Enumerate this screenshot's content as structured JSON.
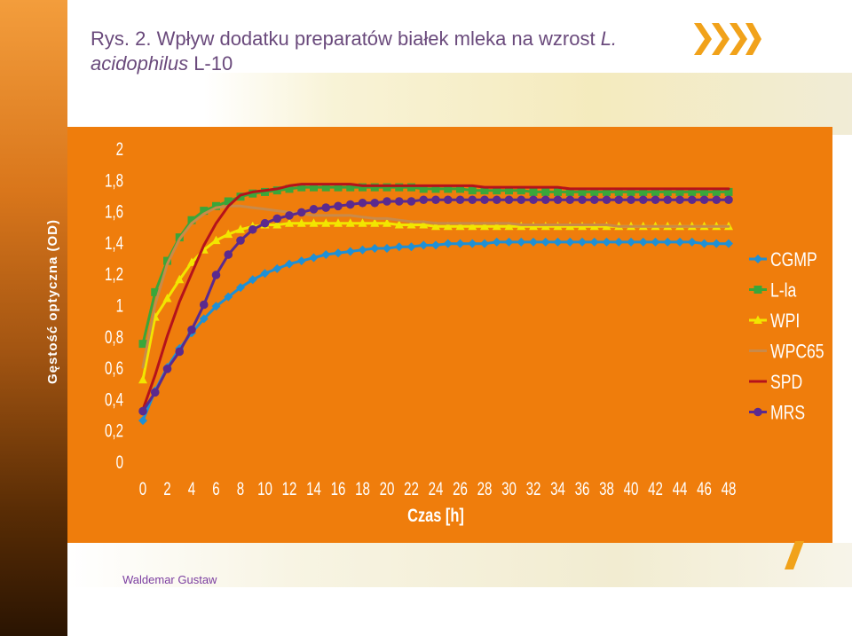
{
  "title": {
    "prefix": "Rys. 2. Wpływ dodatku preparatów białek mleka na wzrost ",
    "species": "L. acidophilus",
    "strain": " L-10"
  },
  "author": "Waldemar Gustaw",
  "colors": {
    "panel": "#ef7d0c",
    "title": "#6a4a7c",
    "author": "#7b3ea0"
  },
  "chart_data": {
    "type": "line",
    "title": "",
    "xlabel": "Czas [h]",
    "ylabel": "Gęstość optyczna (OD)",
    "xlim": [
      0,
      48
    ],
    "ylim": [
      0,
      2
    ],
    "xticks": [
      "0",
      "2",
      "4",
      "6",
      "8",
      "10",
      "12",
      "14",
      "16",
      "18",
      "20",
      "22",
      "24",
      "26",
      "28",
      "30",
      "32",
      "34",
      "36",
      "38",
      "40",
      "42",
      "44",
      "46",
      "48"
    ],
    "yticks": [
      "0",
      "0,2",
      "0,4",
      "0,6",
      "0,8",
      "1",
      "1,2",
      "1,4",
      "1,6",
      "1,8",
      "2"
    ],
    "legend_position": "right",
    "series": [
      {
        "name": "CGMP",
        "color": "#1e90d6",
        "marker": "diamond",
        "x": [
          0,
          1,
          2,
          3,
          4,
          5,
          6,
          7,
          8,
          9,
          10,
          11,
          12,
          13,
          14,
          15,
          16,
          17,
          18,
          19,
          20,
          21,
          22,
          23,
          24,
          25,
          26,
          27,
          28,
          29,
          30,
          31,
          32,
          33,
          34,
          35,
          36,
          37,
          38,
          39,
          40,
          41,
          42,
          43,
          44,
          45,
          46,
          47,
          48
        ],
        "y": [
          0.26,
          0.45,
          0.6,
          0.72,
          0.82,
          0.91,
          0.99,
          1.05,
          1.11,
          1.16,
          1.2,
          1.23,
          1.26,
          1.28,
          1.3,
          1.32,
          1.33,
          1.34,
          1.35,
          1.36,
          1.36,
          1.37,
          1.37,
          1.38,
          1.38,
          1.39,
          1.39,
          1.39,
          1.39,
          1.4,
          1.4,
          1.4,
          1.4,
          1.4,
          1.4,
          1.4,
          1.4,
          1.4,
          1.4,
          1.4,
          1.4,
          1.4,
          1.4,
          1.4,
          1.4,
          1.4,
          1.39,
          1.39,
          1.39
        ]
      },
      {
        "name": "L-la",
        "color": "#3aa63a",
        "marker": "square",
        "x": [
          0,
          1,
          2,
          3,
          4,
          5,
          6,
          7,
          8,
          9,
          10,
          11,
          12,
          13,
          14,
          15,
          16,
          17,
          18,
          19,
          20,
          21,
          22,
          23,
          24,
          25,
          26,
          27,
          28,
          29,
          30,
          31,
          32,
          33,
          34,
          35,
          36,
          37,
          38,
          39,
          40,
          41,
          42,
          43,
          44,
          45,
          46,
          47,
          48
        ],
        "y": [
          0.75,
          1.08,
          1.28,
          1.43,
          1.54,
          1.6,
          1.63,
          1.66,
          1.69,
          1.71,
          1.72,
          1.73,
          1.74,
          1.75,
          1.75,
          1.75,
          1.75,
          1.75,
          1.75,
          1.75,
          1.75,
          1.75,
          1.75,
          1.74,
          1.74,
          1.74,
          1.74,
          1.73,
          1.73,
          1.73,
          1.73,
          1.73,
          1.72,
          1.72,
          1.72,
          1.72,
          1.72,
          1.72,
          1.72,
          1.72,
          1.72,
          1.72,
          1.72,
          1.72,
          1.72,
          1.72,
          1.72,
          1.72,
          1.72
        ]
      },
      {
        "name": "WPI",
        "color": "#f2e600",
        "marker": "triangle",
        "x": [
          0,
          1,
          2,
          3,
          4,
          5,
          6,
          7,
          8,
          9,
          10,
          11,
          12,
          13,
          14,
          15,
          16,
          17,
          18,
          19,
          20,
          21,
          22,
          23,
          24,
          25,
          26,
          27,
          28,
          29,
          30,
          31,
          32,
          33,
          34,
          35,
          36,
          37,
          38,
          39,
          40,
          41,
          42,
          43,
          44,
          45,
          46,
          47,
          48
        ],
        "y": [
          0.52,
          0.92,
          1.04,
          1.16,
          1.27,
          1.35,
          1.41,
          1.45,
          1.48,
          1.5,
          1.51,
          1.51,
          1.52,
          1.52,
          1.52,
          1.52,
          1.52,
          1.52,
          1.52,
          1.52,
          1.52,
          1.51,
          1.51,
          1.51,
          1.5,
          1.5,
          1.5,
          1.5,
          1.5,
          1.5,
          1.5,
          1.5,
          1.5,
          1.5,
          1.5,
          1.5,
          1.5,
          1.5,
          1.5,
          1.5,
          1.5,
          1.5,
          1.5,
          1.5,
          1.5,
          1.5,
          1.5,
          1.5,
          1.5
        ]
      },
      {
        "name": "WPC65",
        "color": "#c98a4a",
        "marker": "dash",
        "x": [
          0,
          1,
          2,
          3,
          4,
          5,
          6,
          7,
          8,
          9,
          10,
          11,
          12,
          13,
          14,
          15,
          16,
          17,
          18,
          19,
          20,
          21,
          22,
          23,
          24,
          25,
          26,
          27,
          28,
          29,
          30,
          31,
          32,
          33,
          34,
          35,
          36,
          37,
          38,
          39,
          40,
          41,
          42,
          43,
          44,
          45,
          46,
          47,
          48
        ],
        "y": [
          0.6,
          1.0,
          1.26,
          1.42,
          1.52,
          1.58,
          1.62,
          1.63,
          1.63,
          1.62,
          1.61,
          1.6,
          1.59,
          1.58,
          1.57,
          1.57,
          1.57,
          1.57,
          1.56,
          1.55,
          1.55,
          1.54,
          1.53,
          1.53,
          1.52,
          1.52,
          1.52,
          1.52,
          1.52,
          1.52,
          1.52,
          1.51,
          1.51,
          1.51,
          1.51,
          1.51,
          1.51,
          1.51,
          1.51,
          1.5,
          1.5,
          1.5,
          1.5,
          1.5,
          1.5,
          1.5,
          1.5,
          1.5,
          1.5
        ]
      },
      {
        "name": "SPD",
        "color": "#b5121b",
        "marker": "dash",
        "x": [
          0,
          1,
          2,
          3,
          4,
          5,
          6,
          7,
          8,
          9,
          10,
          11,
          12,
          13,
          14,
          15,
          16,
          17,
          18,
          19,
          20,
          21,
          22,
          23,
          24,
          25,
          26,
          27,
          28,
          29,
          30,
          31,
          32,
          33,
          34,
          35,
          36,
          37,
          38,
          39,
          40,
          41,
          42,
          43,
          44,
          45,
          46,
          47,
          48
        ],
        "y": [
          0.33,
          0.55,
          0.8,
          1.02,
          1.2,
          1.38,
          1.52,
          1.63,
          1.7,
          1.72,
          1.73,
          1.74,
          1.76,
          1.77,
          1.77,
          1.77,
          1.77,
          1.77,
          1.76,
          1.76,
          1.76,
          1.76,
          1.76,
          1.76,
          1.76,
          1.76,
          1.76,
          1.76,
          1.75,
          1.75,
          1.75,
          1.75,
          1.75,
          1.75,
          1.75,
          1.74,
          1.74,
          1.74,
          1.74,
          1.74,
          1.74,
          1.74,
          1.74,
          1.74,
          1.74,
          1.74,
          1.74,
          1.74,
          1.74
        ]
      },
      {
        "name": "MRS",
        "color": "#5b2a8e",
        "marker": "circle",
        "x": [
          0,
          1,
          2,
          3,
          4,
          5,
          6,
          7,
          8,
          9,
          10,
          11,
          12,
          13,
          14,
          15,
          16,
          17,
          18,
          19,
          20,
          21,
          22,
          23,
          24,
          25,
          26,
          27,
          28,
          29,
          30,
          31,
          32,
          33,
          34,
          35,
          36,
          37,
          38,
          39,
          40,
          41,
          42,
          43,
          44,
          45,
          46,
          47,
          48
        ],
        "y": [
          0.32,
          0.44,
          0.59,
          0.7,
          0.84,
          1.0,
          1.19,
          1.32,
          1.41,
          1.48,
          1.52,
          1.55,
          1.57,
          1.59,
          1.61,
          1.62,
          1.63,
          1.64,
          1.65,
          1.65,
          1.66,
          1.66,
          1.66,
          1.67,
          1.67,
          1.67,
          1.67,
          1.67,
          1.67,
          1.67,
          1.67,
          1.67,
          1.67,
          1.67,
          1.67,
          1.67,
          1.67,
          1.67,
          1.67,
          1.67,
          1.67,
          1.67,
          1.67,
          1.67,
          1.67,
          1.67,
          1.67,
          1.67,
          1.67
        ]
      }
    ]
  }
}
